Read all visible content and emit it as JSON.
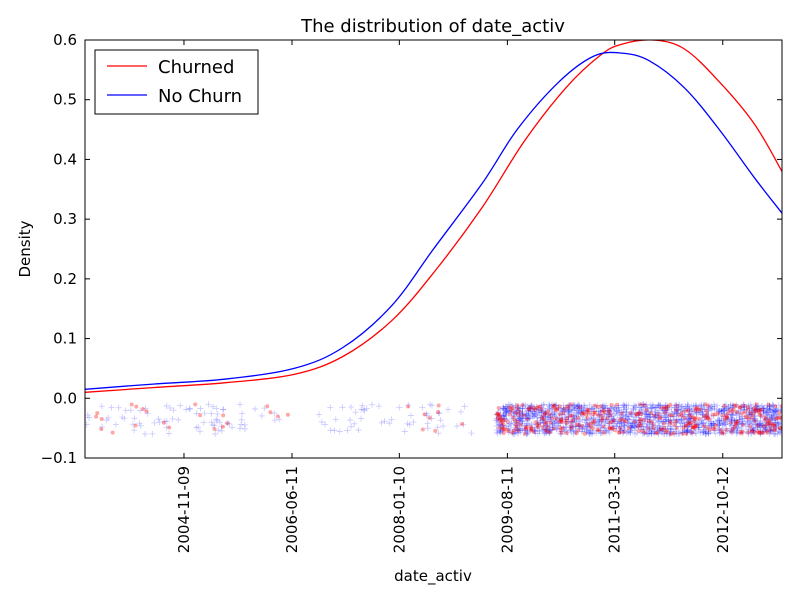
{
  "chart_data": {
    "type": "line",
    "title": "The distribution of date_activ",
    "xlabel": "date_activ",
    "ylabel": "Density",
    "xlim": [
      0,
      100
    ],
    "ylim": [
      -0.1,
      0.6
    ],
    "yticks": [
      {
        "value": -0.1,
        "label": "−0.1"
      },
      {
        "value": 0.0,
        "label": "0.0"
      },
      {
        "value": 0.1,
        "label": "0.1"
      },
      {
        "value": 0.2,
        "label": "0.2"
      },
      {
        "value": 0.3,
        "label": "0.3"
      },
      {
        "value": 0.4,
        "label": "0.4"
      },
      {
        "value": 0.5,
        "label": "0.5"
      },
      {
        "value": 0.6,
        "label": "0.6"
      }
    ],
    "xticks": [
      {
        "value": 14.2,
        "label": "2004-11-09"
      },
      {
        "value": 29.7,
        "label": "2006-06-11"
      },
      {
        "value": 45.1,
        "label": "2008-01-10"
      },
      {
        "value": 60.6,
        "label": "2009-08-11"
      },
      {
        "value": 76.0,
        "label": "2011-03-13"
      },
      {
        "value": 91.5,
        "label": "2012-10-12"
      }
    ],
    "legend": {
      "position": "top-left"
    },
    "series": [
      {
        "name": "Churned",
        "color": "#ff0000",
        "points": [
          [
            0,
            0.01
          ],
          [
            10,
            0.018
          ],
          [
            20,
            0.026
          ],
          [
            30,
            0.04
          ],
          [
            37,
            0.07
          ],
          [
            44,
            0.13
          ],
          [
            50,
            0.21
          ],
          [
            57,
            0.32
          ],
          [
            63,
            0.43
          ],
          [
            69,
            0.52
          ],
          [
            74,
            0.575
          ],
          [
            77,
            0.593
          ],
          [
            81.5,
            0.6
          ],
          [
            86,
            0.585
          ],
          [
            91,
            0.53
          ],
          [
            96,
            0.46
          ],
          [
            100,
            0.38
          ]
        ]
      },
      {
        "name": "No Churn",
        "color": "#0000ff",
        "points": [
          [
            0,
            0.015
          ],
          [
            10,
            0.024
          ],
          [
            20,
            0.032
          ],
          [
            30,
            0.05
          ],
          [
            37,
            0.085
          ],
          [
            44,
            0.155
          ],
          [
            50,
            0.25
          ],
          [
            57,
            0.36
          ],
          [
            62,
            0.45
          ],
          [
            68,
            0.53
          ],
          [
            73,
            0.573
          ],
          [
            77,
            0.578
          ],
          [
            81,
            0.565
          ],
          [
            86,
            0.52
          ],
          [
            91,
            0.45
          ],
          [
            96,
            0.37
          ],
          [
            100,
            0.31
          ]
        ]
      }
    ],
    "rug": {
      "y_range": [
        -0.06,
        -0.01
      ],
      "segments": [
        {
          "series": "No Churn",
          "marker": "plus",
          "color": "#0000ff",
          "x_range": [
            0,
            28
          ],
          "count": 80
        },
        {
          "series": "No Churn",
          "marker": "plus",
          "color": "#0000ff",
          "x_range": [
            33,
            56
          ],
          "count": 55
        },
        {
          "series": "No Churn",
          "marker": "plus",
          "color": "#0000ff",
          "x_range": [
            59,
            100
          ],
          "count": 1600
        },
        {
          "series": "Churned",
          "marker": "dot",
          "color": "#ff0000",
          "x_range": [
            0,
            30
          ],
          "count": 22
        },
        {
          "series": "Churned",
          "marker": "dot",
          "color": "#ff0000",
          "x_range": [
            45,
            56
          ],
          "count": 8
        },
        {
          "series": "Churned",
          "marker": "dot",
          "color": "#ff0000",
          "x_range": [
            59,
            100
          ],
          "count": 380
        }
      ]
    }
  }
}
